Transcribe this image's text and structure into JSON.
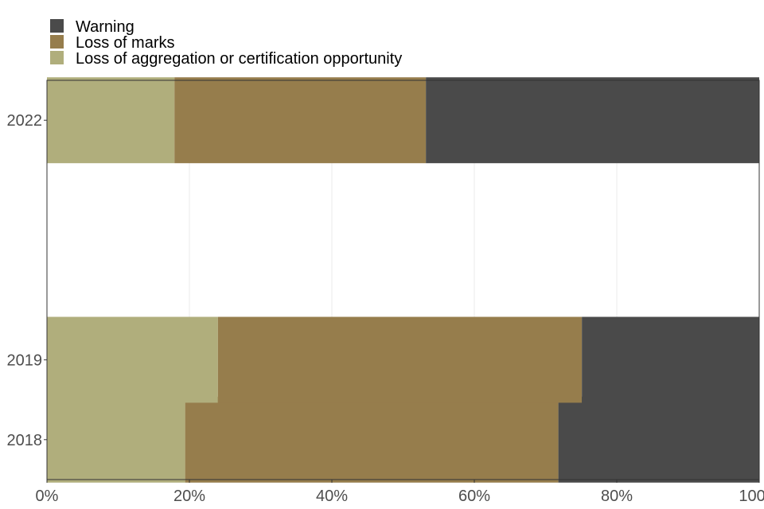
{
  "chart_data": {
    "type": "bar",
    "orientation": "horizontal",
    "stacked": true,
    "normalized": true,
    "title": "",
    "xlabel": "",
    "ylabel": "",
    "x": [
      2018,
      2019,
      2022
    ],
    "xlim": [
      0,
      100
    ],
    "x_ticks": [
      0,
      20,
      40,
      60,
      80,
      100
    ],
    "x_tick_labels": [
      "0%",
      "20%",
      "40%",
      "60%",
      "80%",
      "100%"
    ],
    "y_axis_range": [
      2017.5,
      2022.5
    ],
    "y_tick_labels": [
      "2018",
      "2019",
      "2022"
    ],
    "series": [
      {
        "name": "Loss of aggregation or certification opportunity",
        "color": "#b0ae7c",
        "values": [
          19.4,
          24.0,
          17.9
        ]
      },
      {
        "name": "Loss of marks",
        "color": "#967d4c",
        "values": [
          52.4,
          51.1,
          35.3
        ]
      },
      {
        "name": "Warning",
        "color": "#4a4a4a",
        "values": [
          28.2,
          24.9,
          46.8
        ]
      }
    ],
    "legend": {
      "placement": "top-left",
      "order": [
        "Warning",
        "Loss of marks",
        "Loss of aggregation or certification opportunity"
      ]
    },
    "grid": true
  }
}
